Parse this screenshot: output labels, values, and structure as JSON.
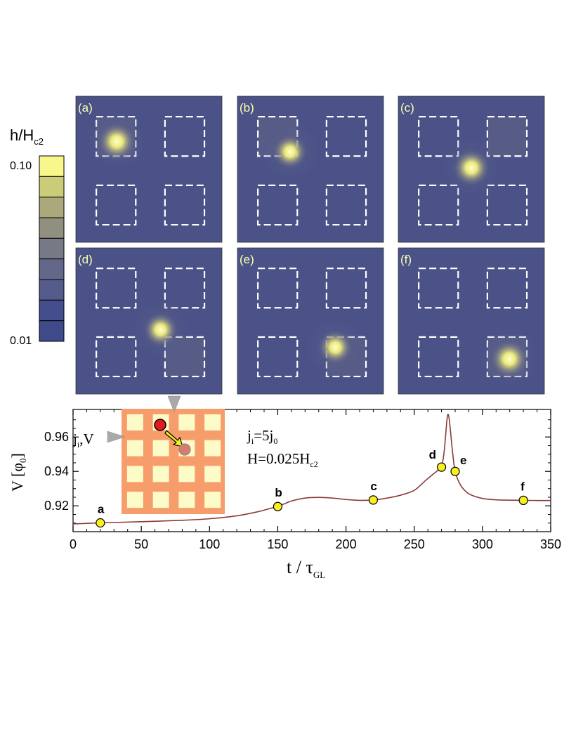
{
  "colorbar": {
    "title_main": "h/H",
    "title_sub": "c2",
    "max_label": "0.10",
    "min_label": "0.01",
    "levels": [
      "#3f4a8a",
      "#454e8c",
      "#555c8c",
      "#636789",
      "#777a86",
      "#908f80",
      "#aba97b",
      "#cccc78",
      "#f7f78c"
    ]
  },
  "panels": [
    {
      "label": "(a)",
      "vortex_cell": [
        0,
        0
      ],
      "vortex_pos": [
        0.28,
        0.31
      ],
      "intensity": 1.0
    },
    {
      "label": "(b)",
      "vortex_cell": [
        0,
        0
      ],
      "vortex_pos": [
        0.36,
        0.38
      ],
      "intensity": 0.8
    },
    {
      "label": "(c)",
      "vortex_cell": [
        0,
        1
      ],
      "vortex_pos": [
        0.5,
        0.49
      ],
      "intensity": 0.95
    },
    {
      "label": "(d)",
      "vortex_cell": [
        1,
        1
      ],
      "vortex_pos": [
        0.58,
        0.56
      ],
      "intensity": 0.8
    },
    {
      "label": "(e)",
      "vortex_cell": [
        1,
        1
      ],
      "vortex_pos": [
        0.67,
        0.68
      ],
      "intensity": 0.8
    },
    {
      "label": "(f)",
      "vortex_cell": [
        1,
        1
      ],
      "vortex_pos": [
        0.76,
        0.76
      ],
      "intensity": 1.0
    }
  ],
  "colors": {
    "panel_bg": "#4a5288",
    "curve": "#8b3a3a",
    "marker": "#f5f01e",
    "inset_frame": "#f79d6c",
    "inset_cell": "#fdfbc8",
    "vortex_red": "#e11b1b",
    "vortex_ghost": "#d97c70",
    "arrow": "#f5f01e"
  },
  "inset": {
    "label_main": "j",
    "label_sub": "i",
    "label_rest": ",V"
  },
  "annotation": {
    "line1_main": "j",
    "line1_sub": "i",
    "line1_rest": "=5j",
    "line1_sub2": "0",
    "line2": "H=0.025H",
    "line2_sub": "c2"
  },
  "chart_data": {
    "type": "line",
    "xlabel": "t / τ",
    "xlabel_sub": "GL",
    "ylabel": "V [φ",
    "ylabel_sub": "0",
    "ylabel_end": "]",
    "xlim": [
      0,
      350
    ],
    "ylim": [
      0.905,
      0.976
    ],
    "xticks": [
      0,
      50,
      100,
      150,
      200,
      250,
      300,
      350
    ],
    "yticks": [
      0.92,
      0.94,
      0.96
    ],
    "yticklabels": [
      "0.92",
      "0.94",
      "0.96"
    ],
    "series": [
      {
        "x": [
          0,
          20,
          50,
          80,
          100,
          120,
          135,
          145,
          150,
          155,
          160,
          170,
          180,
          190,
          200,
          210,
          220,
          230,
          240,
          250,
          258,
          264,
          268,
          270,
          272,
          274,
          275,
          276,
          278,
          280,
          284,
          290,
          300,
          310,
          320,
          330,
          340,
          350
        ],
        "y": [
          0.9095,
          0.9101,
          0.9108,
          0.9116,
          0.9125,
          0.9142,
          0.9165,
          0.9186,
          0.9196,
          0.9212,
          0.9228,
          0.9245,
          0.9249,
          0.9245,
          0.9237,
          0.9232,
          0.9234,
          0.9245,
          0.9262,
          0.929,
          0.9345,
          0.9385,
          0.941,
          0.9425,
          0.952,
          0.97,
          0.973,
          0.968,
          0.952,
          0.94,
          0.932,
          0.927,
          0.9243,
          0.9235,
          0.9233,
          0.9232,
          0.9231,
          0.9231
        ]
      }
    ],
    "markers": [
      {
        "label": "a",
        "x": 20,
        "y": 0.9101
      },
      {
        "label": "b",
        "x": 150,
        "y": 0.9196
      },
      {
        "label": "c",
        "x": 220,
        "y": 0.9234
      },
      {
        "label": "d",
        "x": 270,
        "y": 0.9425
      },
      {
        "label": "e",
        "x": 280,
        "y": 0.94
      },
      {
        "label": "f",
        "x": 330,
        "y": 0.9232
      }
    ]
  }
}
